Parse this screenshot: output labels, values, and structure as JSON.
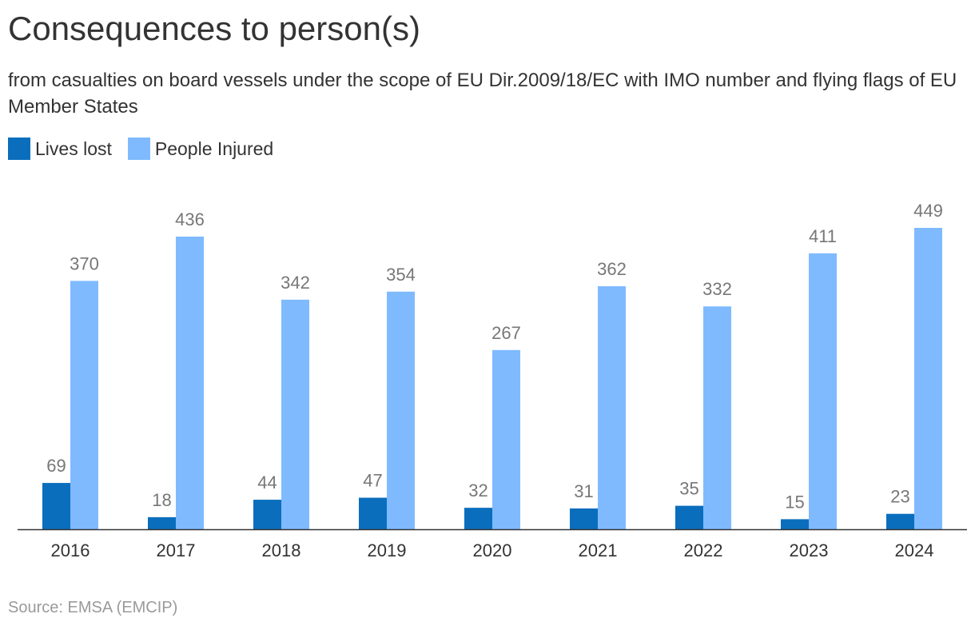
{
  "header": {
    "title": "Consequences to person(s)",
    "subtitle": "from casualties on board vessels under the scope of EU Dir.2009/18/EC with IMO number and flying flags of EU Member States"
  },
  "legend": {
    "items": [
      {
        "label": "Lives lost",
        "color": "#0a6ebd"
      },
      {
        "label": "People Injured",
        "color": "#7fbaff"
      }
    ]
  },
  "footer": {
    "source": "Source: EMSA (EMCIP)"
  },
  "chart_data": {
    "type": "bar",
    "title": "Consequences to person(s)",
    "xlabel": "",
    "ylabel": "",
    "grid": false,
    "legend_position": "top-left",
    "ylim": [
      0,
      449
    ],
    "categories": [
      "2016",
      "2017",
      "2018",
      "2019",
      "2020",
      "2021",
      "2022",
      "2023",
      "2024"
    ],
    "series": [
      {
        "name": "Lives lost",
        "color": "#0a6ebd",
        "values": [
          69,
          18,
          44,
          47,
          32,
          31,
          35,
          15,
          23
        ]
      },
      {
        "name": "People Injured",
        "color": "#7fbaff",
        "values": [
          370,
          436,
          342,
          354,
          267,
          362,
          332,
          411,
          449
        ]
      }
    ]
  }
}
